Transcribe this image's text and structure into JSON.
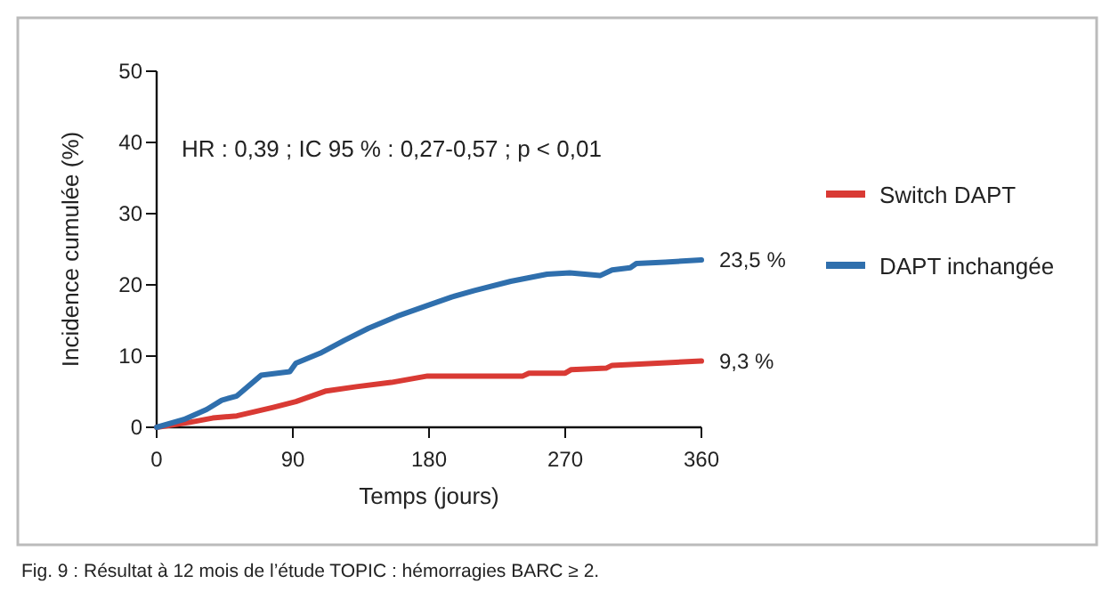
{
  "chart_data": {
    "type": "line",
    "xlabel": "Temps (jours)",
    "ylabel": "Incidence cumulée (%)",
    "x": [
      0,
      18,
      33,
      43,
      53,
      69,
      88,
      92,
      108,
      124,
      140,
      159,
      179,
      195,
      210,
      234,
      258,
      273,
      293,
      301,
      313,
      317,
      336,
      360
    ],
    "xlim": [
      0,
      360
    ],
    "xticks": [
      0,
      90,
      180,
      270,
      360
    ],
    "ylim": [
      0,
      50
    ],
    "yticks": [
      0,
      10,
      20,
      30,
      40,
      50
    ],
    "grid": false,
    "legend": "right",
    "marker": "none",
    "line_style": "solid",
    "series": [
      {
        "name": "Switch DAPT",
        "color": "#d93a34",
        "x": [
          0,
          22,
          37,
          53,
          77,
          92,
          112,
          132,
          155,
          179,
          210,
          242,
          246,
          270,
          274,
          297,
          301,
          360
        ],
        "values": [
          0,
          0.7,
          1.3,
          1.6,
          2.8,
          3.6,
          5.1,
          5.7,
          6.3,
          7.2,
          7.2,
          7.2,
          7.6,
          7.6,
          8.1,
          8.3,
          8.7,
          9.3
        ],
        "value_labels": [
          null,
          null,
          null,
          null,
          null,
          null,
          null,
          null,
          null,
          null,
          null,
          null,
          null,
          null,
          null,
          null,
          null,
          "9,3 %"
        ]
      },
      {
        "name": "DAPT inchangée",
        "color": "#2f6fad",
        "values": [
          0,
          1.1,
          2.5,
          3.8,
          4.4,
          7.3,
          7.8,
          9.0,
          10.4,
          12.2,
          13.9,
          15.6,
          17.1,
          18.3,
          19.2,
          20.5,
          21.5,
          21.7,
          21.3,
          22.1,
          22.4,
          23.0,
          23.2,
          23.5
        ],
        "value_labels": [
          null,
          null,
          null,
          null,
          null,
          null,
          null,
          null,
          null,
          null,
          null,
          null,
          null,
          null,
          null,
          null,
          null,
          null,
          null,
          null,
          null,
          null,
          null,
          "23,5 %"
        ]
      }
    ],
    "annotations": [
      "HR : 0,39 ; IC 95 % : 0,27-0,57 ; p < 0,01",
      "Fig. 9 : Résultat à 12 mois de l’étude TOPIC : hémorragies BARC ≥ 2."
    ]
  }
}
